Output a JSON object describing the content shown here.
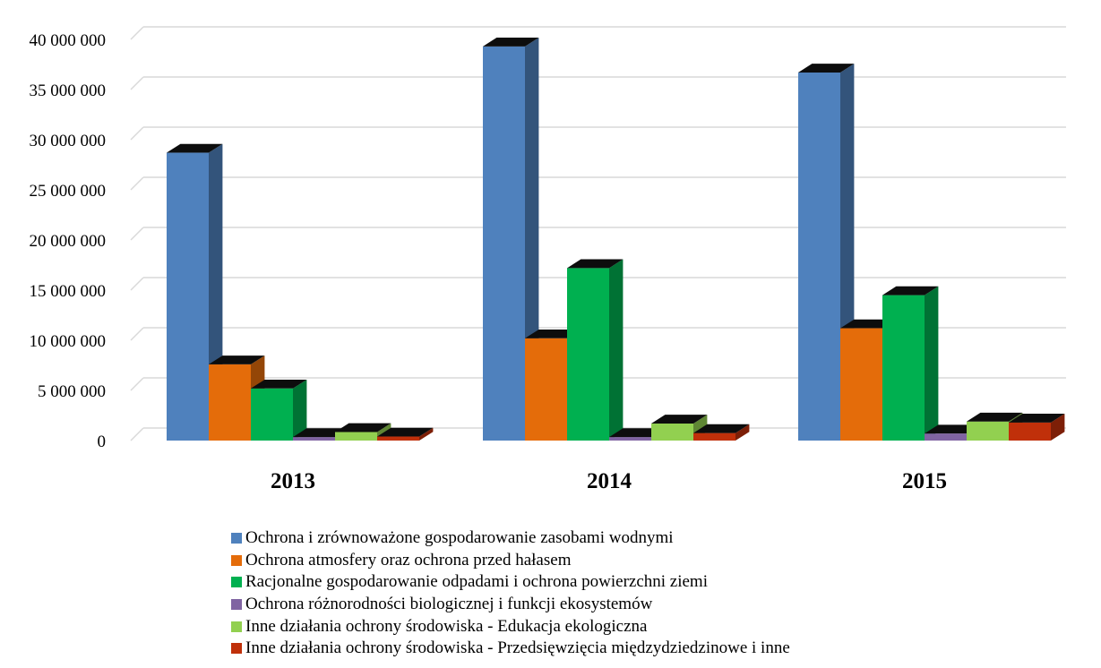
{
  "chart_data": {
    "type": "bar",
    "variant": "3d-clustered-column",
    "categories": [
      "2013",
      "2014",
      "2015"
    ],
    "series": [
      {
        "name": "Ochrona i zrównoważone gospodarowanie zasobami wodnymi",
        "color": "#4F81BD",
        "values": [
          28700000,
          39300000,
          36700000
        ]
      },
      {
        "name": "Ochrona atmosfery oraz ochrona przed  hałasem",
        "color": "#E46C0A",
        "values": [
          7600000,
          10200000,
          11200000
        ]
      },
      {
        "name": "Racjonalne gospodarowanie odpadami i ochrona powierzchni ziemi",
        "color": "#00B050",
        "values": [
          5200000,
          17200000,
          14500000
        ]
      },
      {
        "name": "Ochrona różnorodności biologicznej i funkcji ekosystemów",
        "color": "#8064A2",
        "values": [
          350000,
          350000,
          700000
        ]
      },
      {
        "name": "Inne działania ochrony środowiska - Edukacja ekologiczna",
        "color": "#92D050",
        "values": [
          850000,
          1700000,
          1900000
        ]
      },
      {
        "name": "Inne działania ochrony środowiska - Przedsięwzięcia międzydziedzinowe i inne",
        "color": "#C0300A",
        "values": [
          400000,
          750000,
          1800000
        ]
      }
    ],
    "yticks": [
      "0",
      "5 000 000",
      "10 000 000",
      "15 000 000",
      "20 000 000",
      "25 000 000",
      "30 000 000",
      "35 000 000",
      "40 000 000"
    ],
    "ylim": [
      0,
      40000000
    ],
    "grid": true,
    "legend_position": "bottom"
  }
}
